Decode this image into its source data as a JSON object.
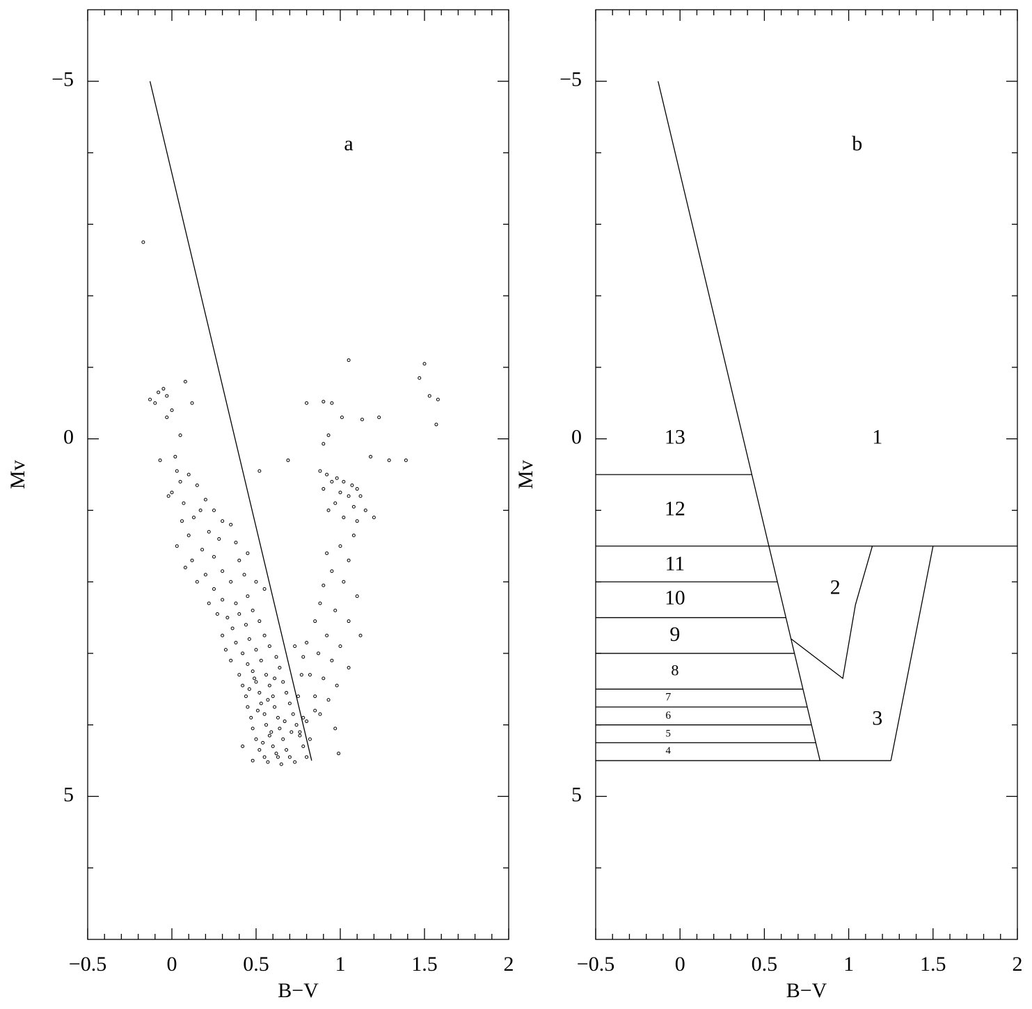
{
  "chart_data": [
    {
      "type": "scatter",
      "xlabel": "B−V",
      "ylabel": "Mv",
      "xlim": [
        -0.5,
        2
      ],
      "ylim": [
        7,
        -6
      ],
      "xticks": [
        {
          "value": -0.5,
          "label": "−0.5"
        },
        0,
        0.5,
        1,
        1.5,
        2
      ],
      "yticks": [
        {
          "value": -5,
          "label": "−5"
        },
        0,
        5
      ],
      "xminorticks": [
        -0.4,
        -0.3,
        -0.2,
        -0.1,
        0.1,
        0.2,
        0.3,
        0.4,
        0.6,
        0.7,
        0.8,
        0.9,
        1.1,
        1.2,
        1.3,
        1.4,
        1.6,
        1.7,
        1.8,
        1.9
      ],
      "yminorticks": [
        -4,
        -3,
        -2,
        -1,
        1,
        2,
        3,
        4,
        6
      ],
      "color": "#000000",
      "x": [
        -0.17,
        -0.13,
        -0.03,
        0.08,
        -0.05,
        -0.08,
        -0.1,
        0,
        0.12,
        -0.03,
        0.05,
        -0.07,
        0.02,
        1.05,
        1.5,
        1.47,
        1.53,
        1.58,
        1.57,
        0.8,
        0.9,
        0.95,
        1.23,
        1.13,
        1.01,
        0.93,
        0.9,
        1.18,
        1.29,
        1.39,
        0.69,
        0.52,
        0.03,
        0.1,
        0.15,
        0.05,
        0,
        0.07,
        -0.02,
        0.2,
        0.17,
        0.13,
        0.25,
        0.06,
        0.22,
        0.3,
        0.1,
        0.35,
        0.28,
        0.03,
        0.18,
        0.38,
        0.12,
        0.25,
        0.4,
        0.08,
        0.3,
        0.2,
        0.45,
        0.15,
        0.35,
        0.43,
        0.25,
        0.5,
        0.22,
        0.3,
        0.38,
        0.45,
        0.55,
        0.27,
        0.33,
        0.4,
        0.48,
        0.52,
        0.36,
        0.44,
        0.3,
        0.38,
        0.46,
        0.55,
        0.32,
        0.42,
        0.5,
        0.58,
        0.35,
        0.45,
        0.53,
        0.62,
        0.4,
        0.48,
        0.56,
        0.64,
        0.42,
        0.5,
        0.58,
        0.66,
        0.44,
        0.52,
        0.6,
        0.68,
        0.45,
        0.53,
        0.61,
        0.7,
        0.47,
        0.55,
        0.63,
        0.72,
        0.48,
        0.56,
        0.64,
        0.74,
        0.5,
        0.58,
        0.66,
        0.76,
        0.52,
        0.6,
        0.68,
        0.78,
        0.55,
        0.63,
        0.7,
        0.8,
        0.42,
        0.48,
        0.57,
        0.65,
        0.73,
        0.46,
        0.51,
        0.59,
        0.54,
        0.62,
        0.67,
        0.57,
        0.49,
        0.61,
        0.71,
        0.75,
        0.78,
        0.82,
        0.85,
        0.77,
        0.73,
        0.88,
        0.92,
        0.98,
        1.02,
        1.07,
        0.95,
        1.1,
        0.9,
        1,
        1.05,
        1.12,
        0.97,
        1.08,
        1.15,
        0.93,
        1.02,
        1.1,
        1.2,
        1.08,
        1,
        0.92,
        1.05,
        0.95,
        0.9,
        1.02,
        1.1,
        0.88,
        0.97,
        1.05,
        0.85,
        1.12,
        0.92,
        0.8,
        1,
        0.87,
        0.78,
        0.95,
        1.05,
        0.82,
        0.9,
        0.98,
        0.85,
        0.93,
        0.88,
        0.8,
        0.97,
        0.99,
        0.76
      ],
      "y": [
        -2.75,
        -0.55,
        -0.6,
        -0.8,
        -0.7,
        -0.65,
        -0.5,
        -0.4,
        -0.5,
        -0.3,
        -0.05,
        0.3,
        0.25,
        -1.1,
        -1.05,
        -0.85,
        -0.6,
        -0.55,
        -0.2,
        -0.5,
        -0.52,
        -0.5,
        -0.3,
        -0.27,
        -0.3,
        -0.05,
        0.07,
        0.25,
        0.3,
        0.3,
        0.3,
        0.45,
        0.45,
        0.5,
        0.65,
        0.6,
        0.75,
        0.9,
        0.8,
        0.85,
        1,
        1.1,
        1,
        1.15,
        1.3,
        1.15,
        1.35,
        1.2,
        1.4,
        1.5,
        1.55,
        1.45,
        1.7,
        1.65,
        1.7,
        1.8,
        1.85,
        1.9,
        1.6,
        2,
        2,
        1.9,
        2.1,
        2,
        2.3,
        2.25,
        2.3,
        2.2,
        2.1,
        2.45,
        2.5,
        2.45,
        2.4,
        2.55,
        2.65,
        2.6,
        2.75,
        2.85,
        2.8,
        2.75,
        2.95,
        3,
        2.95,
        2.9,
        3.1,
        3.15,
        3.1,
        3.05,
        3.3,
        3.25,
        3.3,
        3.2,
        3.45,
        3.4,
        3.45,
        3.4,
        3.6,
        3.55,
        3.6,
        3.55,
        3.75,
        3.7,
        3.75,
        3.7,
        3.9,
        3.85,
        3.9,
        3.85,
        4.05,
        4,
        4.05,
        4,
        4.2,
        4.15,
        4.2,
        4.15,
        4.35,
        4.3,
        4.35,
        4.3,
        4.45,
        4.45,
        4.45,
        4.45,
        4.3,
        4.5,
        4.52,
        4.55,
        4.52,
        3.5,
        3.8,
        4.1,
        4.25,
        4.4,
        3.95,
        3.65,
        3.35,
        3.35,
        4.1,
        3.6,
        3.9,
        4.2,
        3.8,
        3.3,
        2.9,
        0.45,
        0.5,
        0.55,
        0.6,
        0.65,
        0.6,
        0.7,
        0.7,
        0.75,
        0.8,
        0.8,
        0.9,
        0.95,
        1,
        1,
        1.1,
        1.15,
        1.1,
        1.35,
        1.5,
        1.6,
        1.7,
        1.85,
        2.05,
        2,
        2.2,
        2.3,
        2.4,
        2.55,
        2.55,
        2.75,
        2.75,
        2.85,
        2.9,
        3,
        3.05,
        3.1,
        3.2,
        3.3,
        3.35,
        3.45,
        3.6,
        3.65,
        3.85,
        3.95,
        4.05,
        4.4,
        4.1
      ],
      "lines": [
        {
          "x": [
            -0.13,
            0.83
          ],
          "y": [
            -5,
            4.5
          ]
        }
      ],
      "annotations": [
        {
          "text": "a",
          "x": 1.05,
          "y": -4.1
        }
      ]
    },
    {
      "type": "line",
      "xlabel": "B−V",
      "ylabel": "Mv",
      "xlim": [
        -0.5,
        2
      ],
      "ylim": [
        7,
        -6
      ],
      "xticks": [
        {
          "value": -0.5,
          "label": "−0.5"
        },
        0,
        0.5,
        1,
        1.5,
        2
      ],
      "yticks": [
        {
          "value": -5,
          "label": "−5"
        },
        0,
        5
      ],
      "xminorticks": [
        -0.4,
        -0.3,
        -0.2,
        -0.1,
        0.1,
        0.2,
        0.3,
        0.4,
        0.6,
        0.7,
        0.8,
        0.9,
        1.1,
        1.2,
        1.3,
        1.4,
        1.6,
        1.7,
        1.8,
        1.9
      ],
      "yminorticks": [
        -4,
        -3,
        -2,
        -1,
        1,
        2,
        3,
        4,
        6
      ],
      "color": "#000000",
      "lines": [
        {
          "x": [
            -0.13,
            0.83
          ],
          "y": [
            -5,
            4.5
          ]
        },
        {
          "x": [
            -0.5,
            0.426
          ],
          "y": [
            0.5,
            0.5
          ]
        },
        {
          "x": [
            -0.5,
            2
          ],
          "y": [
            1.5,
            1.5
          ]
        },
        {
          "x": [
            -0.5,
            0.578
          ],
          "y": [
            2,
            2
          ]
        },
        {
          "x": [
            -0.5,
            0.628
          ],
          "y": [
            2.5,
            2.5
          ]
        },
        {
          "x": [
            -0.5,
            0.678
          ],
          "y": [
            3,
            3
          ]
        },
        {
          "x": [
            -0.5,
            0.729
          ],
          "y": [
            3.5,
            3.5
          ]
        },
        {
          "x": [
            -0.5,
            0.754
          ],
          "y": [
            3.75,
            3.75
          ]
        },
        {
          "x": [
            -0.5,
            0.779
          ],
          "y": [
            4,
            4
          ]
        },
        {
          "x": [
            -0.5,
            0.805
          ],
          "y": [
            4.25,
            4.25
          ]
        },
        {
          "x": [
            -0.5,
            1.25
          ],
          "y": [
            4.5,
            4.5
          ]
        },
        {
          "x": [
            0.66,
            0.965,
            1.04,
            1.14
          ],
          "y": [
            2.8,
            3.35,
            2.32,
            1.5
          ]
        },
        {
          "x": [
            1.25,
            1.5
          ],
          "y": [
            4.5,
            1.5
          ]
        }
      ],
      "annotations": [
        {
          "text": "b",
          "x": 1.05,
          "y": -4.1
        },
        {
          "text": "1",
          "x": 1.17,
          "y": 0
        },
        {
          "text": "2",
          "x": 0.92,
          "y": 2.1
        },
        {
          "text": "3",
          "x": 1.17,
          "y": 3.93
        },
        {
          "text": "13",
          "x": -0.03,
          "y": 0
        },
        {
          "text": "12",
          "x": -0.03,
          "y": 1
        },
        {
          "text": "11",
          "x": -0.03,
          "y": 1.77
        },
        {
          "text": "10",
          "x": -0.03,
          "y": 2.25
        },
        {
          "text": "9",
          "x": -0.03,
          "y": 2.76
        },
        {
          "text": "8",
          "x": -0.03,
          "y": 3.26
        },
        {
          "text": "7",
          "x": -0.07,
          "y": 3.62
        },
        {
          "text": "6",
          "x": -0.07,
          "y": 3.88
        },
        {
          "text": "5",
          "x": -0.07,
          "y": 4.13
        },
        {
          "text": "4",
          "x": -0.07,
          "y": 4.37
        }
      ]
    }
  ]
}
